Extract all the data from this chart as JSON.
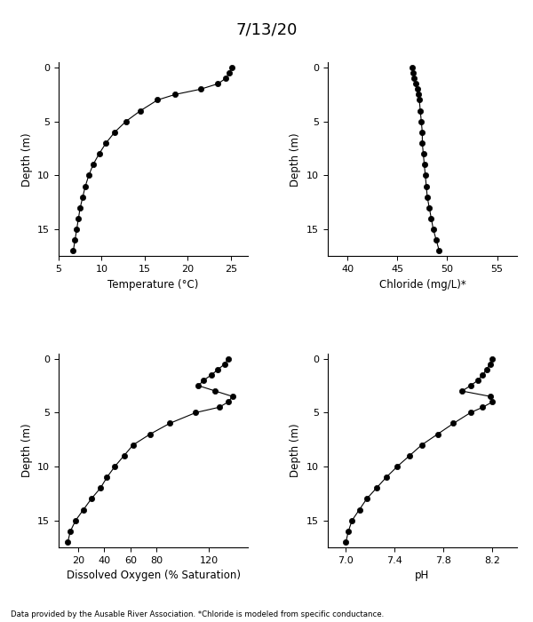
{
  "title": "7/13/20",
  "footnote": "Data provided by the Ausable River Association. *Chloride is modeled from specific conductance.",
  "temp": {
    "depth": [
      0,
      0.5,
      1,
      1.5,
      2,
      2.5,
      3,
      4,
      5,
      6,
      7,
      8,
      9,
      10,
      11,
      12,
      13,
      14,
      15,
      16,
      17
    ],
    "values": [
      25.1,
      24.8,
      24.4,
      23.5,
      21.5,
      18.5,
      16.5,
      14.5,
      12.8,
      11.5,
      10.5,
      9.7,
      9.0,
      8.5,
      8.1,
      7.8,
      7.5,
      7.3,
      7.1,
      6.9,
      6.7
    ],
    "xlabel": "Temperature (°C)",
    "xlim": [
      5,
      27
    ],
    "xticks": [
      5,
      10,
      15,
      20,
      25
    ],
    "ylim": [
      17.5,
      -0.5
    ],
    "yticks": [
      0,
      5,
      10,
      15
    ]
  },
  "chloride": {
    "depth": [
      0,
      0.5,
      1,
      1.5,
      2,
      2.5,
      3,
      4,
      5,
      6,
      7,
      8,
      9,
      10,
      11,
      12,
      13,
      14,
      15,
      16,
      17
    ],
    "values": [
      46.5,
      46.6,
      46.7,
      46.8,
      47.0,
      47.1,
      47.2,
      47.3,
      47.4,
      47.5,
      47.5,
      47.6,
      47.7,
      47.8,
      47.9,
      48.0,
      48.2,
      48.4,
      48.6,
      48.9,
      49.2
    ],
    "xlabel": "Chloride (mg/L)*",
    "xlim": [
      38,
      57
    ],
    "xticks": [
      40,
      45,
      50,
      55
    ],
    "ylim": [
      17.5,
      -0.5
    ],
    "yticks": [
      0,
      5,
      10,
      15
    ]
  },
  "do": {
    "depth": [
      0,
      0.5,
      1,
      1.5,
      2,
      2.5,
      3,
      3.5,
      4,
      4.5,
      5,
      6,
      7,
      8,
      9,
      10,
      11,
      12,
      13,
      14,
      15,
      16,
      17
    ],
    "values": [
      135,
      132,
      127,
      122,
      116,
      112,
      125,
      138,
      135,
      128,
      110,
      90,
      75,
      62,
      55,
      48,
      42,
      37,
      30,
      24,
      18,
      14,
      12
    ],
    "xlabel": "Dissolved Oxygen (% Saturation)",
    "xlim": [
      5,
      150
    ],
    "xticks": [
      20,
      40,
      60,
      80,
      120
    ],
    "ylim": [
      17.5,
      -0.5
    ],
    "yticks": [
      0,
      5,
      10,
      15
    ]
  },
  "ph": {
    "depth": [
      0,
      0.5,
      1,
      1.5,
      2,
      2.5,
      3,
      3.5,
      4,
      4.5,
      5,
      6,
      7,
      8,
      9,
      10,
      11,
      12,
      13,
      14,
      15,
      16,
      17
    ],
    "values": [
      8.2,
      8.18,
      8.15,
      8.12,
      8.08,
      8.02,
      7.95,
      8.18,
      8.2,
      8.12,
      8.02,
      7.88,
      7.75,
      7.62,
      7.52,
      7.42,
      7.33,
      7.25,
      7.17,
      7.11,
      7.05,
      7.02,
      7.0
    ],
    "xlabel": "pH",
    "xlim": [
      6.85,
      8.4
    ],
    "xticks": [
      7.0,
      7.4,
      7.8,
      8.2
    ],
    "ylim": [
      17.5,
      -0.5
    ],
    "yticks": [
      0,
      5,
      10,
      15
    ]
  }
}
